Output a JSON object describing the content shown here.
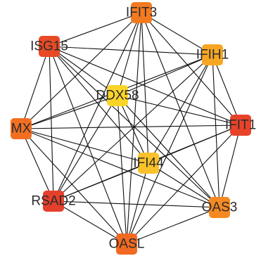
{
  "network": {
    "nodes": [
      {
        "id": "IFIT3",
        "label": "IFIT3",
        "color": "#f47a20"
      },
      {
        "id": "ISG15",
        "label": "ISG15",
        "color": "#e84a26"
      },
      {
        "id": "IFIH1",
        "label": "IFIH1",
        "color": "#f7a623"
      },
      {
        "id": "DDX58",
        "label": "DDX58",
        "color": "#fbd428"
      },
      {
        "id": "MX",
        "label": "MX",
        "color": "#f26f22"
      },
      {
        "id": "IFIT1",
        "label": "IFIT1",
        "color": "#e8432a"
      },
      {
        "id": "IFI44",
        "label": "IFI44",
        "color": "#f9c12a"
      },
      {
        "id": "RSAD2",
        "label": "RSAD2",
        "color": "#e5402b"
      },
      {
        "id": "OAS3",
        "label": "OAS3",
        "color": "#f58a22"
      },
      {
        "id": "OASL",
        "label": "OASL",
        "color": "#f26922"
      }
    ],
    "complete_graph": true
  }
}
